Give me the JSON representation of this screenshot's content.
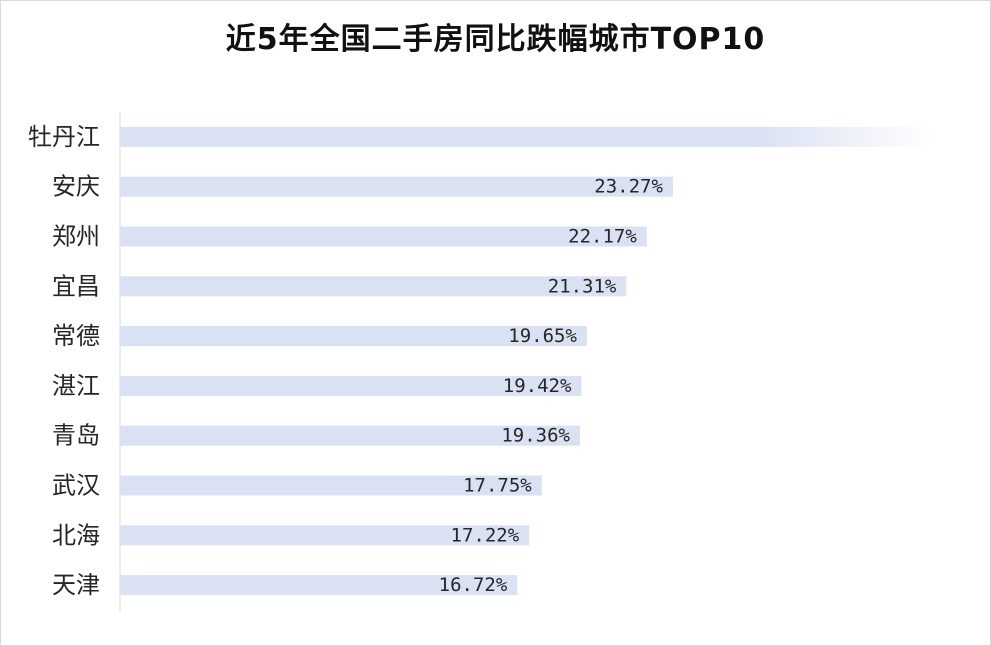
{
  "title": "近5年全国二手房同比跌幅城市TOP10",
  "chart_data": {
    "type": "bar",
    "orientation": "horizontal",
    "title": "近5年全国二手房同比跌幅城市TOP10",
    "xlabel": "",
    "ylabel": "",
    "categories": [
      "牡丹江",
      "安庆",
      "郑州",
      "宜昌",
      "常德",
      "湛江",
      "青岛",
      "武汉",
      "北海",
      "天津"
    ],
    "values": [
      34.3,
      23.27,
      22.17,
      21.31,
      19.65,
      19.42,
      19.36,
      17.75,
      17.22,
      16.72
    ],
    "value_labels": [
      "",
      "23.27%",
      "22.17%",
      "21.31%",
      "19.65%",
      "19.42%",
      "19.36%",
      "17.75%",
      "17.22%",
      "16.72%"
    ],
    "xlim": [
      0,
      34.3
    ],
    "grid": false,
    "legend": "none",
    "bar_color": "#d9e1f2",
    "first_bar_fade": true
  }
}
